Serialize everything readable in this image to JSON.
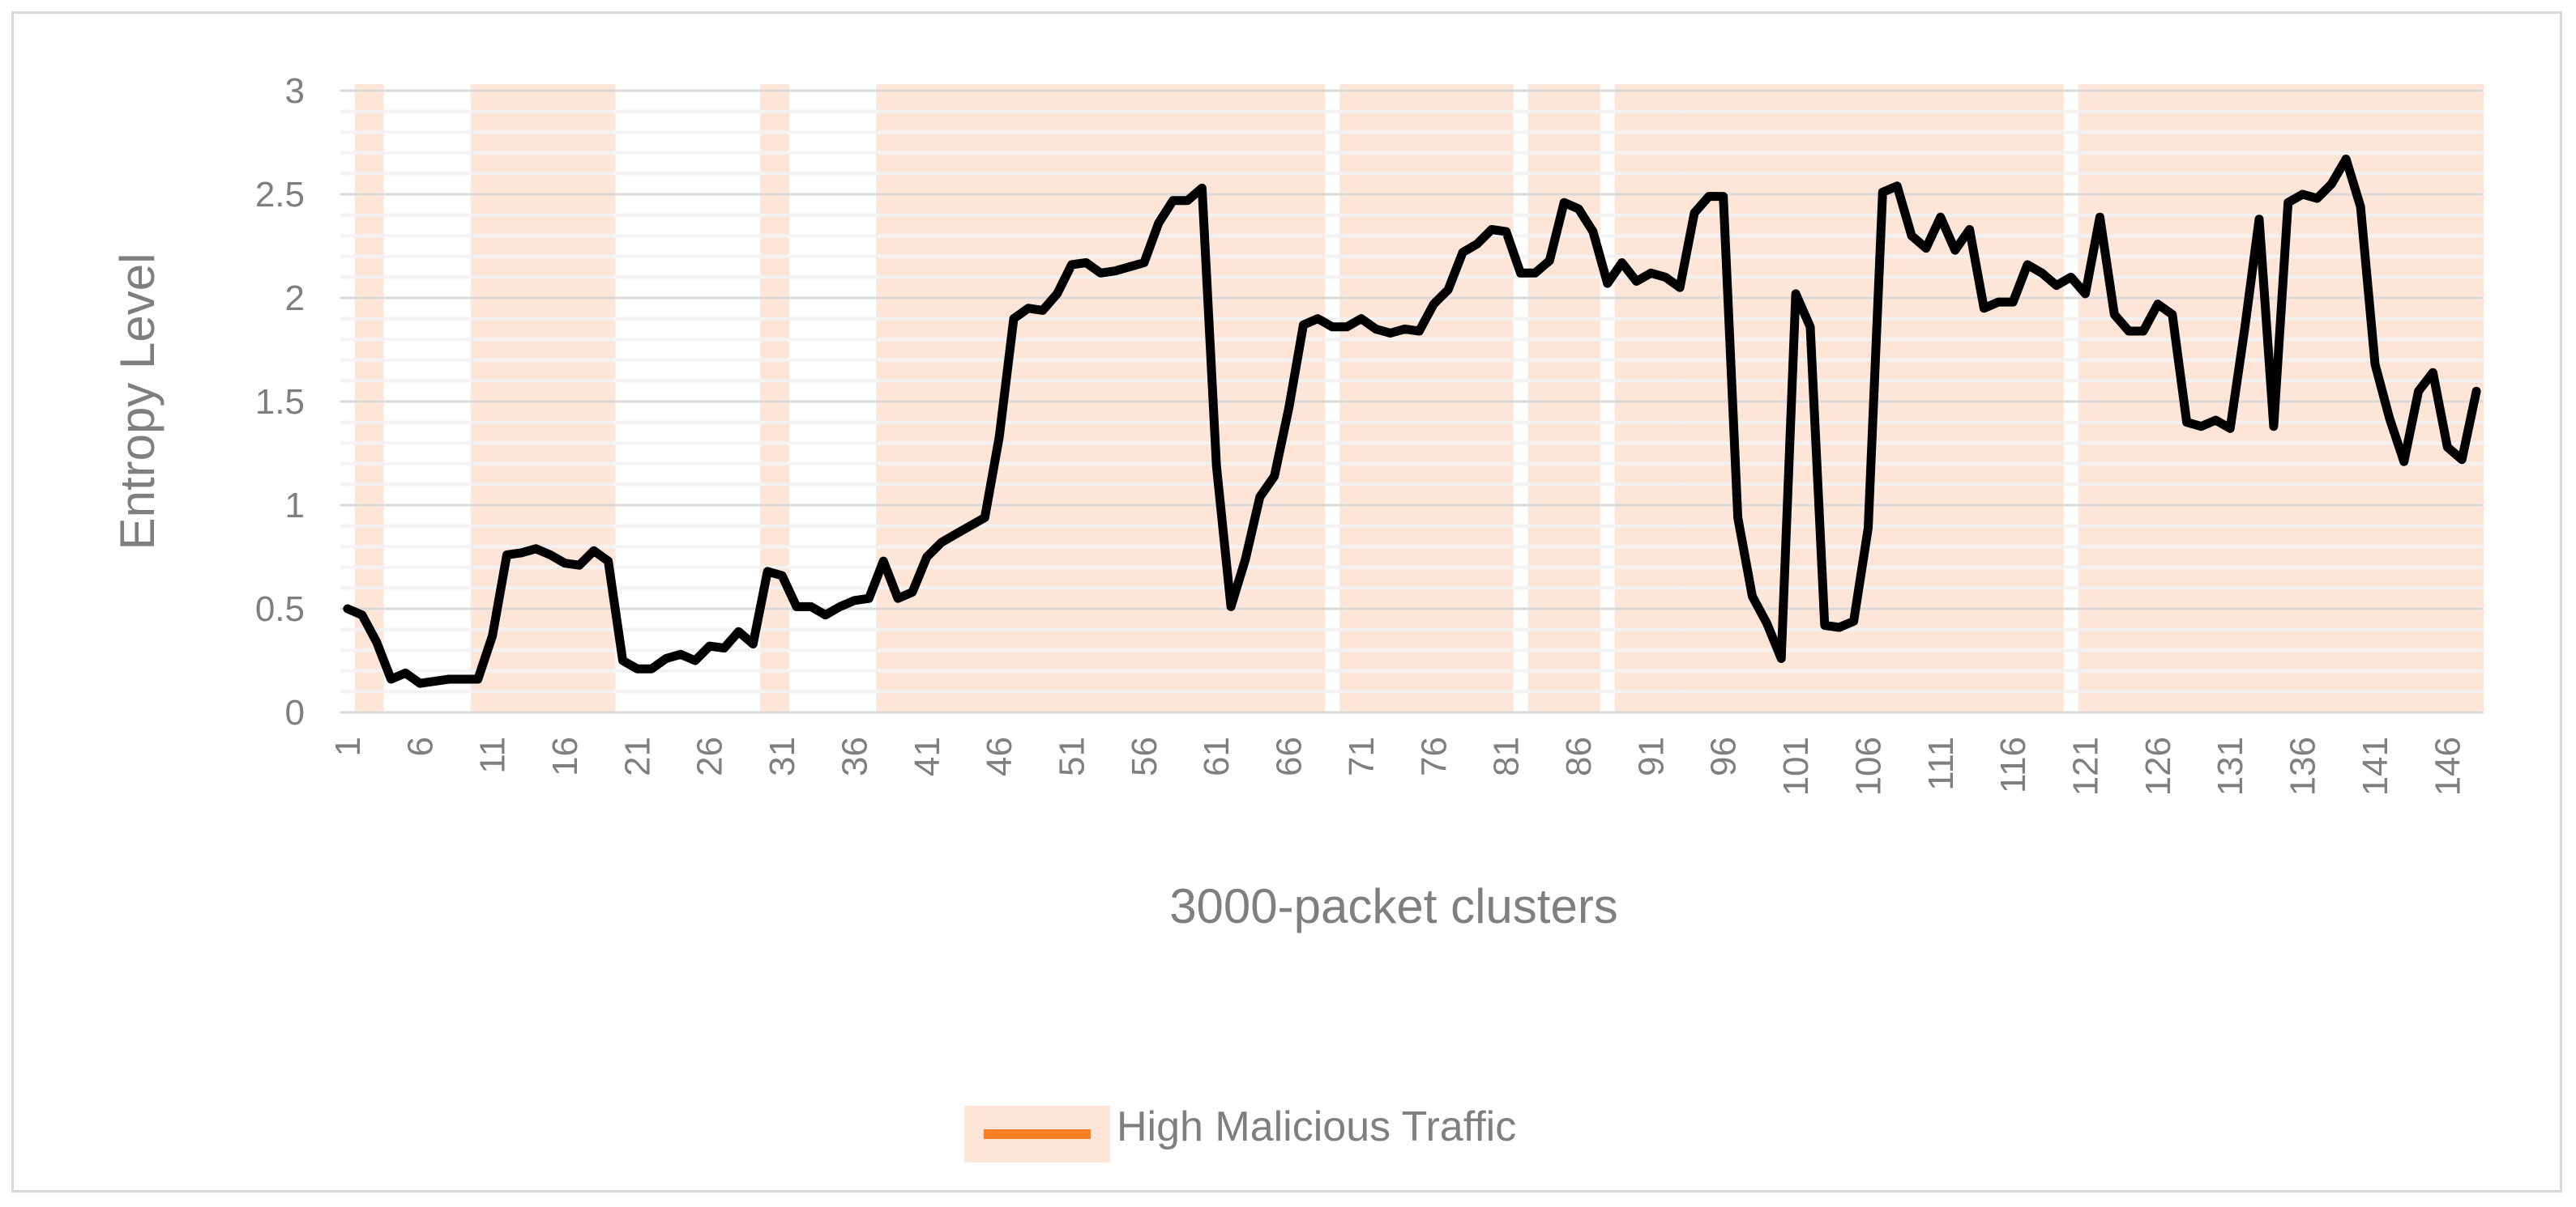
{
  "chart_data": {
    "type": "line",
    "title": "",
    "xlabel": "3000-packet clusters",
    "ylabel": "Entropy Level",
    "ylim": [
      0,
      3
    ],
    "yticks": [
      "0",
      "0.5",
      "1",
      "1.5",
      "2",
      "2.5",
      "3"
    ],
    "xticks": [
      "1",
      "6",
      "11",
      "16",
      "21",
      "26",
      "31",
      "36",
      "41",
      "46",
      "51",
      "56",
      "61",
      "66",
      "71",
      "76",
      "81",
      "86",
      "91",
      "96",
      "101",
      "106",
      "111",
      "116",
      "121",
      "126",
      "131",
      "136",
      "141",
      "146"
    ],
    "x_range": [
      1,
      148
    ],
    "grid": "horizontal minor gridlines",
    "legend": {
      "position": "bottom",
      "entries": [
        "High Malicious Traffic"
      ]
    },
    "colors": {
      "line": "#000000",
      "highlight": "#fde5d8",
      "legend_swatch": "#ff7f27",
      "text": "#7f7f7f"
    },
    "highlight_ranges": [
      [
        2,
        3
      ],
      [
        10,
        19
      ],
      [
        30,
        31
      ],
      [
        38,
        68
      ],
      [
        70,
        81
      ],
      [
        83,
        87
      ],
      [
        89,
        90
      ],
      [
        91,
        92
      ],
      [
        93,
        100
      ],
      [
        101,
        113
      ],
      [
        114,
        119
      ],
      [
        121,
        131
      ],
      [
        132,
        148
      ]
    ],
    "series": [
      {
        "x": [
          1,
          2,
          3,
          4,
          5,
          6,
          7,
          8,
          9,
          10,
          11,
          12,
          13,
          14,
          15,
          16,
          17,
          18,
          19,
          20,
          21,
          22,
          23,
          24,
          25,
          26,
          27,
          28,
          29,
          30,
          31,
          32,
          33,
          34,
          35,
          36,
          37,
          38,
          39,
          40,
          41,
          42,
          43,
          44,
          45,
          46,
          47,
          48,
          49,
          50,
          51,
          52,
          53,
          54,
          55,
          56,
          57,
          58,
          59,
          60,
          61,
          62,
          63,
          64,
          65,
          66,
          67,
          68,
          69,
          70,
          71,
          72,
          73,
          74,
          75,
          76,
          77,
          78,
          79,
          80,
          81,
          82,
          83,
          84,
          85,
          86,
          87,
          88,
          89,
          90,
          91,
          92,
          93,
          94,
          95,
          96,
          97,
          98,
          99,
          100,
          101,
          102,
          103,
          104,
          105,
          106,
          107,
          108,
          109,
          110,
          111,
          112,
          113,
          114,
          115,
          116,
          117,
          118,
          119,
          120,
          121,
          122,
          123,
          124,
          125,
          126,
          127,
          128,
          129,
          130,
          131,
          132,
          133,
          134,
          135,
          136,
          137,
          138,
          139,
          140,
          141,
          142,
          143,
          144,
          145,
          146,
          147,
          148
        ],
        "values": [
          0.5,
          0.47,
          0.34,
          0.16,
          0.19,
          0.14,
          0.15,
          0.16,
          0.16,
          0.16,
          0.37,
          0.76,
          0.77,
          0.79,
          0.76,
          0.72,
          0.71,
          0.78,
          0.73,
          0.25,
          0.21,
          0.21,
          0.26,
          0.28,
          0.25,
          0.32,
          0.31,
          0.39,
          0.33,
          0.68,
          0.66,
          0.51,
          0.51,
          0.47,
          0.51,
          0.54,
          0.55,
          0.73,
          0.55,
          0.58,
          0.75,
          0.82,
          0.86,
          0.9,
          0.94,
          1.33,
          1.9,
          1.95,
          1.94,
          2.02,
          2.16,
          2.17,
          2.12,
          2.13,
          2.15,
          2.17,
          2.36,
          2.47,
          2.47,
          2.53,
          1.19,
          0.51,
          0.74,
          1.04,
          1.14,
          1.47,
          1.87,
          1.9,
          1.86,
          1.86,
          1.9,
          1.85,
          1.83,
          1.85,
          1.84,
          1.97,
          2.04,
          2.22,
          2.26,
          2.33,
          2.32,
          2.12,
          2.12,
          2.18,
          2.46,
          2.43,
          2.32,
          2.07,
          2.17,
          2.08,
          2.12,
          2.1,
          2.05,
          2.41,
          2.49,
          2.49,
          0.94,
          0.56,
          0.43,
          0.26,
          2.02,
          1.86,
          0.42,
          0.41,
          0.44,
          0.89,
          2.51,
          2.54,
          2.3,
          2.24,
          2.39,
          2.23,
          2.33,
          1.95,
          1.98,
          1.98,
          2.16,
          2.12,
          2.06,
          2.1,
          2.02,
          2.39,
          1.92,
          1.84,
          1.84,
          1.97,
          1.92,
          1.4,
          1.38,
          1.41,
          1.37,
          1.85,
          2.38,
          1.38,
          2.46,
          2.5,
          2.48,
          2.55,
          2.67,
          2.44,
          1.68,
          1.42,
          1.21,
          1.55,
          1.64,
          1.28,
          1.22,
          1.55
        ]
      }
    ]
  }
}
